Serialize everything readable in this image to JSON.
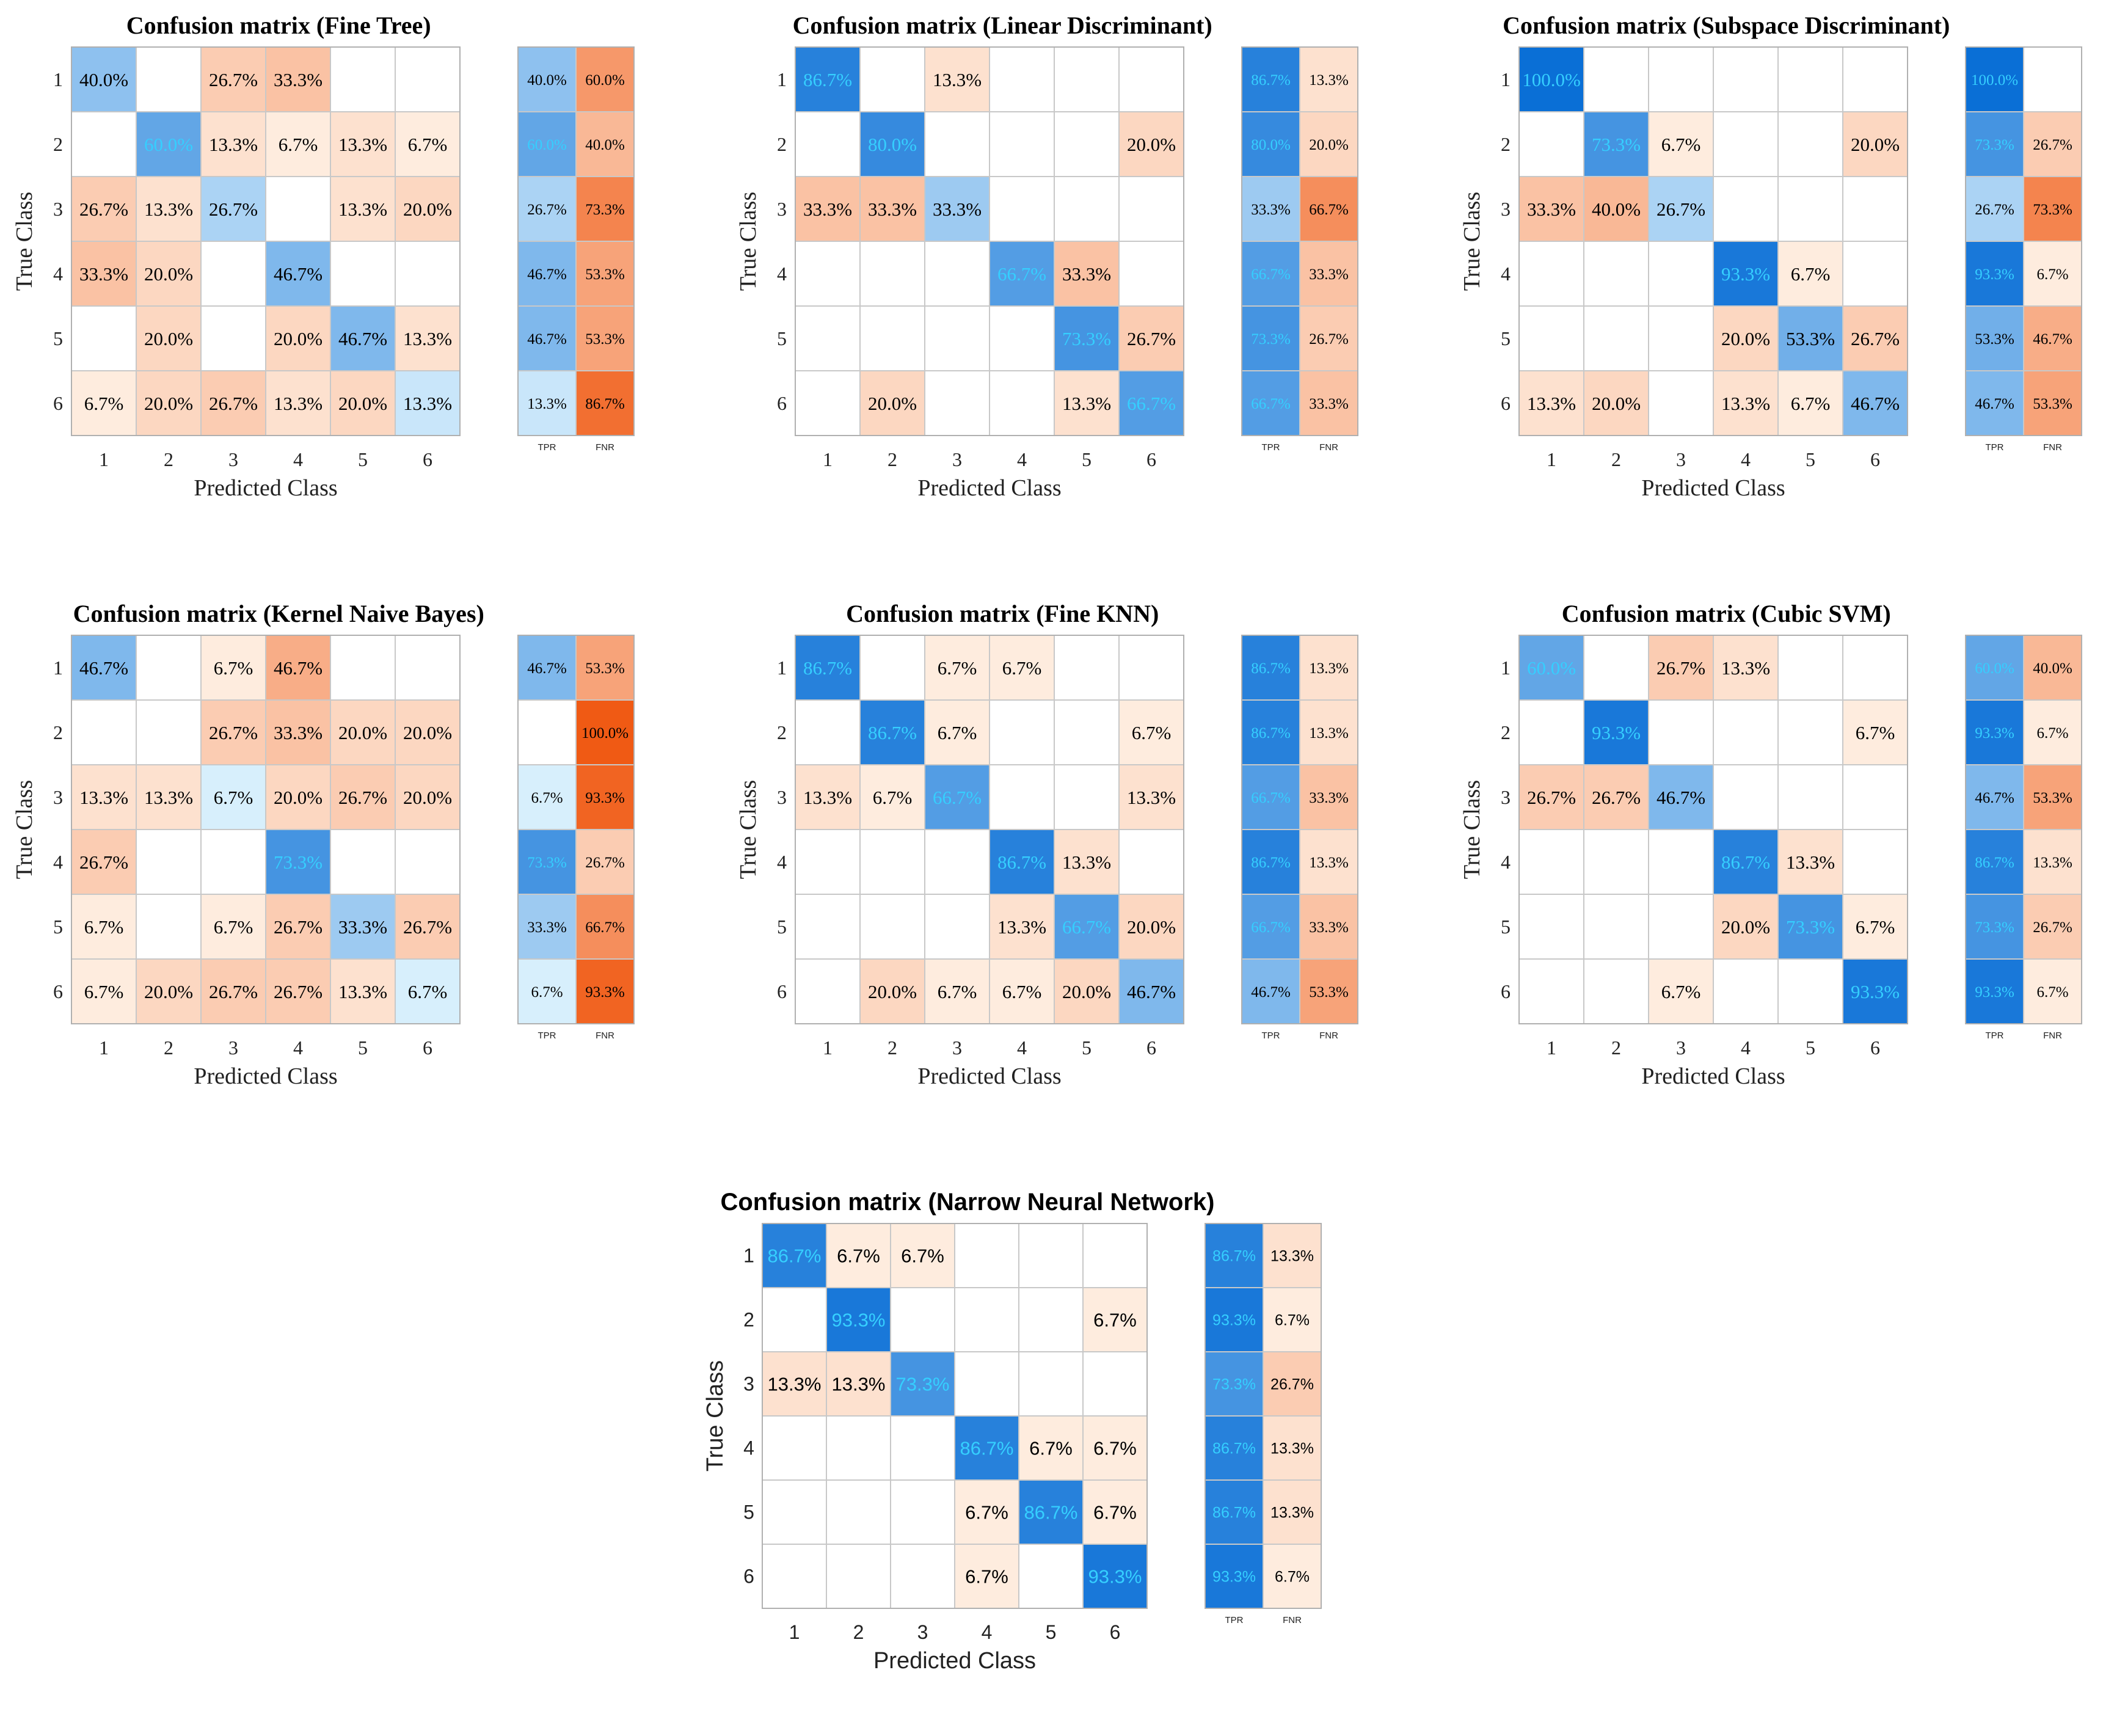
{
  "figure": {
    "summary_headers": [
      "TPR",
      "FNR"
    ],
    "colors": {
      "blue": "#0a6fd6",
      "orange": "#f05a14",
      "grid": "#c8c8c8",
      "text_dark": "#000000",
      "text_light": "#35cfff"
    }
  },
  "chart_data": [
    {
      "type": "heatmap",
      "title": "Confusion matrix (Fine Tree)",
      "xlabel": "Predicted Class",
      "ylabel": "True Class",
      "classes": [
        "1",
        "2",
        "3",
        "4",
        "5",
        "6"
      ],
      "matrix": [
        [
          "40.0%",
          "",
          "26.7%",
          "33.3%",
          "",
          ""
        ],
        [
          "",
          "60.0%",
          "13.3%",
          "6.7%",
          "13.3%",
          "6.7%"
        ],
        [
          "26.7%",
          "13.3%",
          "26.7%",
          "",
          "13.3%",
          "20.0%"
        ],
        [
          "33.3%",
          "20.0%",
          "",
          "46.7%",
          "",
          ""
        ],
        [
          "",
          "20.0%",
          "",
          "20.0%",
          "46.7%",
          "13.3%"
        ],
        [
          "6.7%",
          "20.0%",
          "26.7%",
          "13.3%",
          "20.0%",
          "13.3%"
        ]
      ],
      "tpr": [
        "40.0%",
        "60.0%",
        "26.7%",
        "46.7%",
        "46.7%",
        "13.3%"
      ],
      "fnr": [
        "60.0%",
        "40.0%",
        "73.3%",
        "53.3%",
        "53.3%",
        "86.7%"
      ]
    },
    {
      "type": "heatmap",
      "title": "Confusion matrix (Linear Discriminant)",
      "xlabel": "Predicted Class",
      "ylabel": "True Class",
      "classes": [
        "1",
        "2",
        "3",
        "4",
        "5",
        "6"
      ],
      "matrix": [
        [
          "86.7%",
          "",
          "13.3%",
          "",
          "",
          ""
        ],
        [
          "",
          "80.0%",
          "",
          "",
          "",
          "20.0%"
        ],
        [
          "33.3%",
          "33.3%",
          "33.3%",
          "",
          "",
          ""
        ],
        [
          "",
          "",
          "",
          "66.7%",
          "33.3%",
          ""
        ],
        [
          "",
          "",
          "",
          "",
          "73.3%",
          "26.7%"
        ],
        [
          "",
          "20.0%",
          "",
          "",
          "13.3%",
          "66.7%"
        ]
      ],
      "tpr": [
        "86.7%",
        "80.0%",
        "33.3%",
        "66.7%",
        "73.3%",
        "66.7%"
      ],
      "fnr": [
        "13.3%",
        "20.0%",
        "66.7%",
        "33.3%",
        "26.7%",
        "33.3%"
      ]
    },
    {
      "type": "heatmap",
      "title": "Confusion matrix (Subspace Discriminant)",
      "xlabel": "Predicted Class",
      "ylabel": "True Class",
      "classes": [
        "1",
        "2",
        "3",
        "4",
        "5",
        "6"
      ],
      "matrix": [
        [
          "100.0%",
          "",
          "",
          "",
          "",
          ""
        ],
        [
          "",
          "73.3%",
          "6.7%",
          "",
          "",
          "20.0%"
        ],
        [
          "33.3%",
          "40.0%",
          "26.7%",
          "",
          "",
          ""
        ],
        [
          "",
          "",
          "",
          "93.3%",
          "6.7%",
          ""
        ],
        [
          "",
          "",
          "",
          "20.0%",
          "53.3%",
          "26.7%"
        ],
        [
          "13.3%",
          "20.0%",
          "",
          "13.3%",
          "6.7%",
          "46.7%"
        ]
      ],
      "tpr": [
        "100.0%",
        "73.3%",
        "26.7%",
        "93.3%",
        "53.3%",
        "46.7%"
      ],
      "fnr": [
        "",
        "26.7%",
        "73.3%",
        "6.7%",
        "46.7%",
        "53.3%"
      ]
    },
    {
      "type": "heatmap",
      "title": "Confusion matrix (Kernel Naive Bayes)",
      "xlabel": "Predicted Class",
      "ylabel": "True Class",
      "classes": [
        "1",
        "2",
        "3",
        "4",
        "5",
        "6"
      ],
      "matrix": [
        [
          "46.7%",
          "",
          "6.7%",
          "46.7%",
          "",
          ""
        ],
        [
          "",
          "",
          "26.7%",
          "33.3%",
          "20.0%",
          "20.0%"
        ],
        [
          "13.3%",
          "13.3%",
          "6.7%",
          "20.0%",
          "26.7%",
          "20.0%"
        ],
        [
          "26.7%",
          "",
          "",
          "73.3%",
          "",
          ""
        ],
        [
          "6.7%",
          "",
          "6.7%",
          "26.7%",
          "33.3%",
          "26.7%"
        ],
        [
          "6.7%",
          "20.0%",
          "26.7%",
          "26.7%",
          "13.3%",
          "6.7%"
        ]
      ],
      "tpr": [
        "46.7%",
        "",
        "6.7%",
        "73.3%",
        "33.3%",
        "6.7%"
      ],
      "fnr": [
        "53.3%",
        "100.0%",
        "93.3%",
        "26.7%",
        "66.7%",
        "93.3%"
      ]
    },
    {
      "type": "heatmap",
      "title": "Confusion matrix (Fine KNN)",
      "xlabel": "Predicted Class",
      "ylabel": "True Class",
      "classes": [
        "1",
        "2",
        "3",
        "4",
        "5",
        "6"
      ],
      "matrix": [
        [
          "86.7%",
          "",
          "6.7%",
          "6.7%",
          "",
          ""
        ],
        [
          "",
          "86.7%",
          "6.7%",
          "",
          "",
          "6.7%"
        ],
        [
          "13.3%",
          "6.7%",
          "66.7%",
          "",
          "",
          "13.3%"
        ],
        [
          "",
          "",
          "",
          "86.7%",
          "13.3%",
          ""
        ],
        [
          "",
          "",
          "",
          "13.3%",
          "66.7%",
          "20.0%"
        ],
        [
          "",
          "20.0%",
          "6.7%",
          "6.7%",
          "20.0%",
          "46.7%"
        ]
      ],
      "tpr": [
        "86.7%",
        "86.7%",
        "66.7%",
        "86.7%",
        "66.7%",
        "46.7%"
      ],
      "fnr": [
        "13.3%",
        "13.3%",
        "33.3%",
        "13.3%",
        "33.3%",
        "53.3%"
      ]
    },
    {
      "type": "heatmap",
      "title": "Confusion matrix (Cubic SVM)",
      "xlabel": "Predicted Class",
      "ylabel": "True Class",
      "classes": [
        "1",
        "2",
        "3",
        "4",
        "5",
        "6"
      ],
      "matrix": [
        [
          "60.0%",
          "",
          "26.7%",
          "13.3%",
          "",
          ""
        ],
        [
          "",
          "93.3%",
          "",
          "",
          "",
          "6.7%"
        ],
        [
          "26.7%",
          "26.7%",
          "46.7%",
          "",
          "",
          ""
        ],
        [
          "",
          "",
          "",
          "86.7%",
          "13.3%",
          ""
        ],
        [
          "",
          "",
          "",
          "20.0%",
          "73.3%",
          "6.7%"
        ],
        [
          "",
          "",
          "6.7%",
          "",
          "",
          "93.3%"
        ]
      ],
      "tpr": [
        "60.0%",
        "93.3%",
        "46.7%",
        "86.7%",
        "73.3%",
        "93.3%"
      ],
      "fnr": [
        "40.0%",
        "6.7%",
        "53.3%",
        "13.3%",
        "26.7%",
        "6.7%"
      ]
    },
    {
      "type": "heatmap",
      "title": "Confusion matrix (Narrow Neural Network)",
      "xlabel": "Predicted Class",
      "ylabel": "True Class",
      "classes": [
        "1",
        "2",
        "3",
        "4",
        "5",
        "6"
      ],
      "matrix": [
        [
          "86.7%",
          "6.7%",
          "6.7%",
          "",
          "",
          ""
        ],
        [
          "",
          "93.3%",
          "",
          "",
          "",
          "6.7%"
        ],
        [
          "13.3%",
          "13.3%",
          "73.3%",
          "",
          "",
          ""
        ],
        [
          "",
          "",
          "",
          "86.7%",
          "6.7%",
          "6.7%"
        ],
        [
          "",
          "",
          "",
          "6.7%",
          "86.7%",
          "6.7%"
        ],
        [
          "",
          "",
          "",
          "6.7%",
          "",
          "93.3%"
        ]
      ],
      "tpr": [
        "86.7%",
        "93.3%",
        "73.3%",
        "86.7%",
        "86.7%",
        "93.3%"
      ],
      "fnr": [
        "13.3%",
        "6.7%",
        "26.7%",
        "13.3%",
        "13.3%",
        "6.7%"
      ]
    }
  ]
}
